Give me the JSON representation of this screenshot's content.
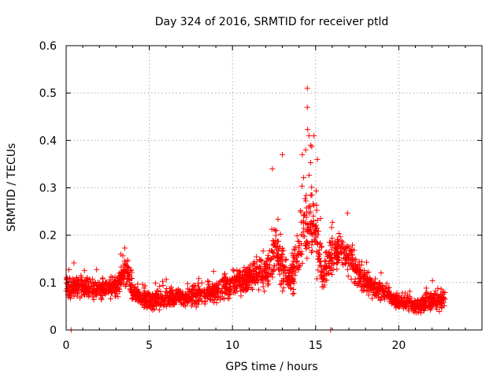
{
  "chart_data": {
    "type": "scatter",
    "title": "Day 324 of 2016, SRMTID for receiver ptld",
    "xlabel": "GPS time / hours",
    "ylabel": "SRMTID / TECUs",
    "xlim": [
      0,
      25
    ],
    "ylim": [
      0,
      0.6
    ],
    "xticks": [
      0,
      5,
      10,
      15,
      20
    ],
    "xtick_labels": [
      "0",
      "5",
      "10",
      "15",
      "20"
    ],
    "yticks": [
      0,
      0.1,
      0.2,
      0.3,
      0.4,
      0.5,
      0.6
    ],
    "ytick_labels": [
      "0",
      "0.1",
      "0.2",
      "0.3",
      "0.4",
      "0.5",
      "0.6"
    ],
    "grid": true,
    "marker": "+",
    "color": "#ff0000",
    "series": [
      {
        "name": "SRMTID",
        "profile": {
          "x": [
            0,
            1,
            2,
            3,
            3.6,
            4,
            5,
            6,
            7,
            8,
            9,
            10,
            11,
            12,
            12.5,
            13,
            13.5,
            14,
            14.5,
            15,
            15.5,
            16,
            16.5,
            17,
            17.5,
            18,
            18.5,
            19,
            20,
            21,
            22,
            22.8
          ],
          "mean": [
            0.09,
            0.09,
            0.085,
            0.09,
            0.13,
            0.08,
            0.06,
            0.065,
            0.07,
            0.075,
            0.08,
            0.1,
            0.11,
            0.12,
            0.16,
            0.13,
            0.11,
            0.16,
            0.24,
            0.2,
            0.12,
            0.16,
            0.17,
            0.15,
            0.12,
            0.1,
            0.09,
            0.08,
            0.06,
            0.05,
            0.06,
            0.06
          ],
          "spread": [
            0.03,
            0.03,
            0.025,
            0.03,
            0.04,
            0.025,
            0.025,
            0.025,
            0.025,
            0.025,
            0.03,
            0.035,
            0.035,
            0.04,
            0.08,
            0.06,
            0.04,
            0.08,
            0.12,
            0.09,
            0.05,
            0.06,
            0.05,
            0.05,
            0.04,
            0.035,
            0.03,
            0.03,
            0.02,
            0.02,
            0.025,
            0.025
          ]
        },
        "point_count": 2300,
        "outliers": [
          {
            "x": 14.5,
            "y": 0.51
          },
          {
            "x": 14.5,
            "y": 0.47
          },
          {
            "x": 14.6,
            "y": 0.41
          },
          {
            "x": 14.9,
            "y": 0.41
          },
          {
            "x": 14.4,
            "y": 0.38
          },
          {
            "x": 14.7,
            "y": 0.39
          },
          {
            "x": 13.0,
            "y": 0.37
          },
          {
            "x": 12.4,
            "y": 0.34
          },
          {
            "x": 14.2,
            "y": 0.37
          },
          {
            "x": 15.1,
            "y": 0.36
          },
          {
            "x": 0.3,
            "y": 0.0
          },
          {
            "x": 15.9,
            "y": 0.0
          }
        ]
      }
    ]
  }
}
